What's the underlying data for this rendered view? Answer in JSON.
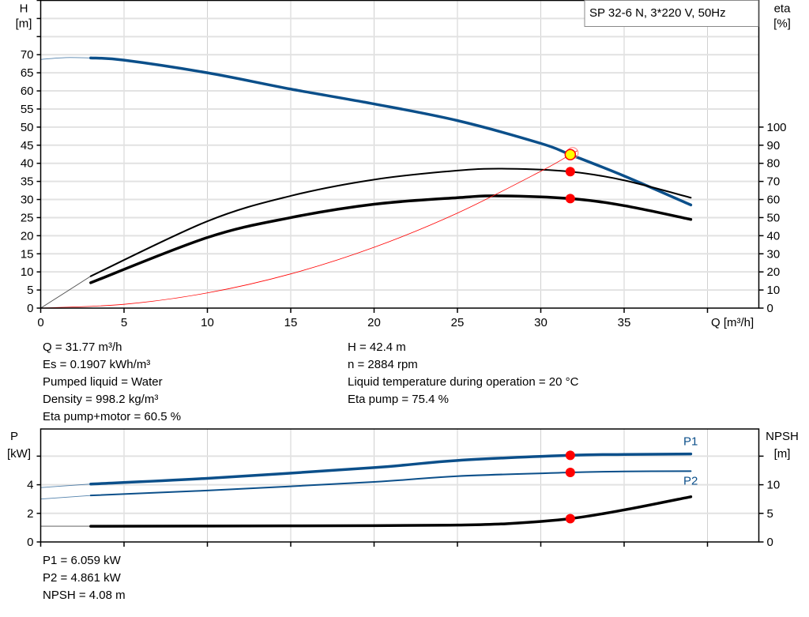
{
  "chart_data": [
    {
      "type": "line",
      "title": "SP 32-6 N, 3*220 V, 50Hz",
      "xlabel": "Q [m³/h]",
      "ylabel": "H\n[m]",
      "y2label": "eta\n[%]",
      "xlim": [
        0,
        43
      ],
      "ylim": [
        0,
        85
      ],
      "y2lim": [
        0,
        170
      ],
      "xticks": [
        "0",
        "5",
        "10",
        "15",
        "20",
        "25",
        "30",
        "35"
      ],
      "yticks": [
        "0",
        "5",
        "10",
        "15",
        "20",
        "25",
        "30",
        "35",
        "40",
        "45",
        "50",
        "55",
        "60",
        "65",
        "70"
      ],
      "y2ticks": [
        "0",
        "10",
        "20",
        "30",
        "40",
        "50",
        "60",
        "70",
        "80",
        "90",
        "100"
      ],
      "grid": true,
      "series": [
        {
          "id": "H",
          "axis": "left",
          "color": "#0b4f8a",
          "x": [
            0,
            1.5,
            3,
            5,
            10,
            15,
            20,
            25,
            30,
            31.77,
            35,
            39
          ],
          "y": [
            68.7,
            69.2,
            69.1,
            68.5,
            65,
            60.5,
            56.4,
            51.8,
            45.5,
            42.4,
            36.5,
            28.5
          ]
        },
        {
          "id": "eta_pump",
          "axis": "right",
          "color": "#000000",
          "x": [
            0,
            3,
            10,
            15,
            20,
            25,
            28,
            31.77,
            35,
            39
          ],
          "y": [
            0,
            17.6,
            48,
            62,
            71,
            76,
            77,
            75.4,
            70.6,
            61
          ]
        },
        {
          "id": "eta_pump_motor",
          "axis": "right",
          "color": "#000000",
          "x": [
            3,
            10,
            15,
            20,
            25,
            27.5,
            31.77,
            35,
            39
          ],
          "y": [
            14,
            39,
            50,
            57.4,
            61,
            62,
            60.5,
            56.6,
            49
          ]
        },
        {
          "id": "system_curve",
          "axis": "left",
          "color": "#ff0000",
          "x": [
            0,
            5,
            10,
            15,
            20,
            25,
            30,
            31.77,
            32.2
          ],
          "y": [
            0,
            1.05,
            4.2,
            9.45,
            16.8,
            26.25,
            37.8,
            42.4,
            43.5
          ]
        }
      ],
      "operating_point": {
        "Q": 31.77,
        "H": 42.4,
        "eta_pump": 75.4,
        "eta_pump_motor": 60.5
      }
    },
    {
      "type": "line",
      "ylabel": "P\n[kW]",
      "y2label": "NPSH\n[m]",
      "xlim": [
        0,
        43
      ],
      "ylim": [
        0,
        7.9
      ],
      "y2lim": [
        0,
        19.75
      ],
      "yticks": [
        "0",
        "2",
        "4"
      ],
      "y2ticks": [
        "0",
        "5",
        "10"
      ],
      "grid": true,
      "series": [
        {
          "id": "P1",
          "name": "P1",
          "axis": "left",
          "color": "#0b4f8a",
          "x": [
            0,
            3,
            10,
            20,
            25,
            31.77,
            35,
            39
          ],
          "y": [
            3.8,
            4.05,
            4.45,
            5.2,
            5.7,
            6.06,
            6.12,
            6.15
          ]
        },
        {
          "id": "P2",
          "name": "P2",
          "axis": "left",
          "color": "#0b4f8a",
          "x": [
            0,
            3,
            10,
            20,
            25,
            31.77,
            35,
            39
          ],
          "y": [
            3.0,
            3.25,
            3.6,
            4.2,
            4.6,
            4.86,
            4.93,
            4.95
          ]
        },
        {
          "id": "NPSH",
          "axis": "right",
          "color": "#000000",
          "x": [
            0,
            3,
            10,
            20,
            25,
            28,
            31.77,
            35,
            39
          ],
          "y": [
            2.75,
            2.75,
            2.78,
            2.85,
            2.95,
            3.2,
            4.08,
            5.6,
            7.9
          ]
        }
      ],
      "operating_point": {
        "Q": 31.77,
        "P1": 6.059,
        "P2": 4.861,
        "NPSH": 4.08
      }
    }
  ],
  "info": {
    "left": [
      "Q = 31.77 m³/h",
      "Es = 0.1907 kWh/m³",
      "Pumped liquid = Water",
      "Density = 998.2 kg/m³",
      "Eta pump+motor = 60.5 %"
    ],
    "right": [
      "H = 42.4 m",
      "n = 2884 rpm",
      "Liquid temperature during operation = 20 °C",
      "Eta pump = 75.4 %"
    ],
    "bottom": [
      "P1 = 6.059 kW",
      "P2 = 4.861 kW",
      "NPSH = 4.08 m"
    ]
  }
}
